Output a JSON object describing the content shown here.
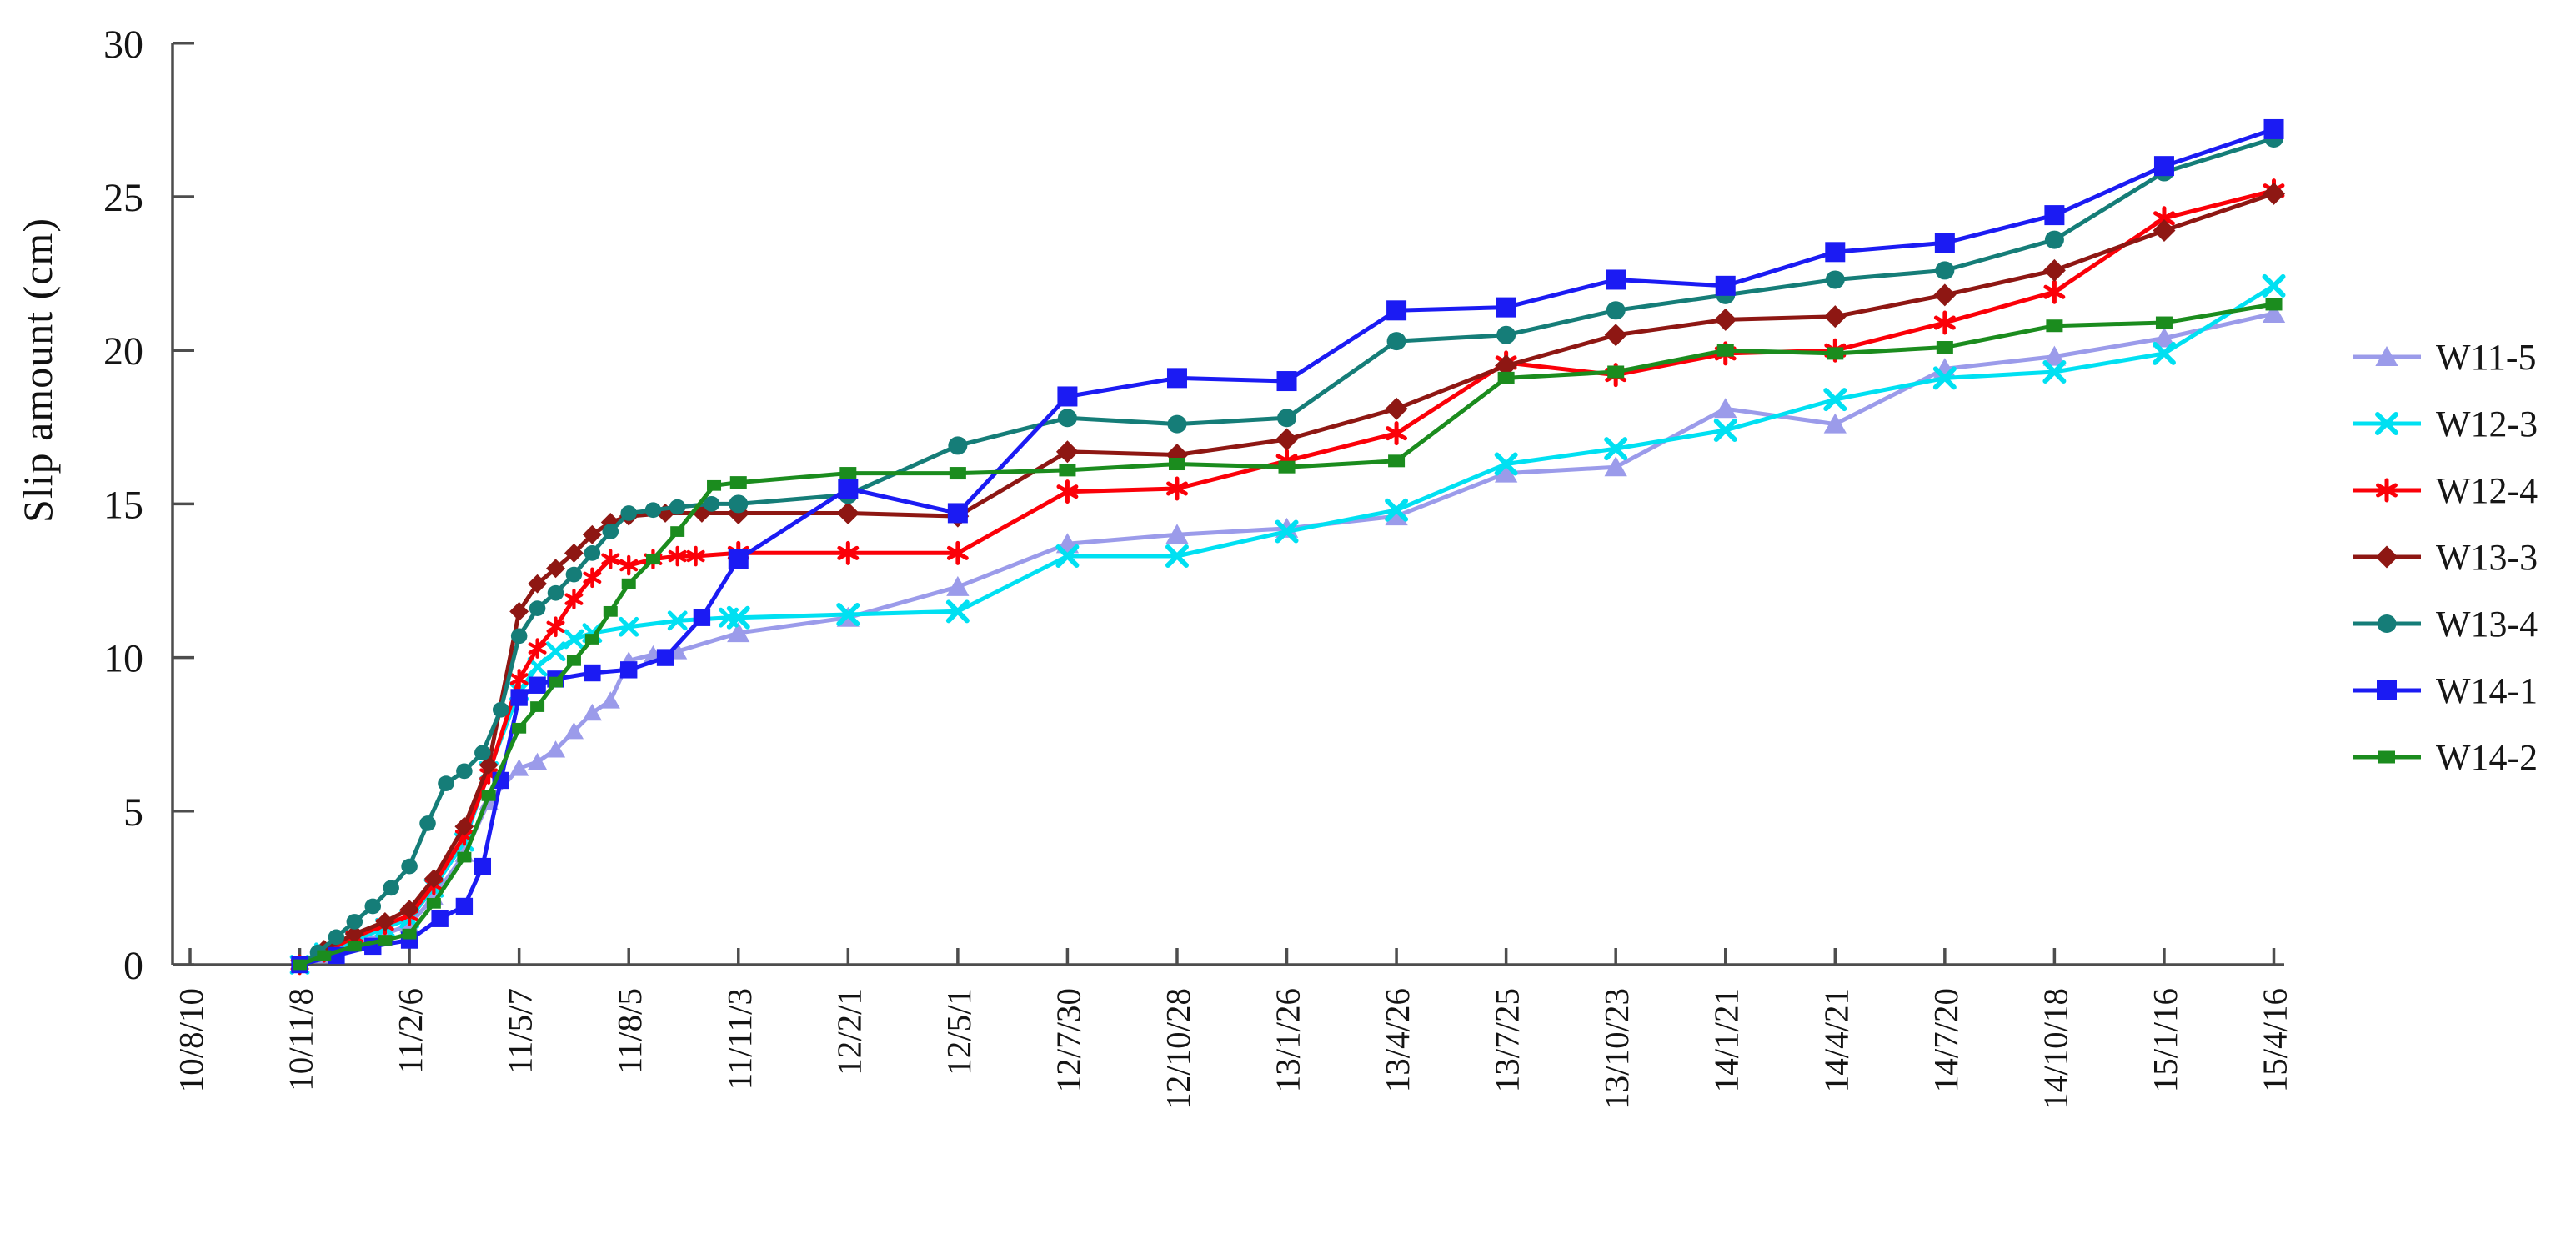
{
  "chart_data": {
    "type": "line",
    "title": "",
    "xlabel": "",
    "ylabel": "Slip amount (cm)",
    "ylim": [
      0,
      30
    ],
    "y_tick_labels": [
      "0",
      "5",
      "10",
      "15",
      "20",
      "25",
      "30"
    ],
    "y_tick_values": [
      0,
      5,
      10,
      15,
      20,
      25,
      30
    ],
    "x_tick_labels": [
      "10/8/10",
      "10/11/8",
      "11/2/6",
      "11/5/7",
      "11/8/5",
      "11/11/3",
      "12/2/1",
      "12/5/1",
      "12/7/30",
      "12/10/28",
      "13/1/26",
      "13/4/26",
      "13/7/25",
      "13/10/23",
      "14/1/21",
      "14/4/21",
      "14/7/20",
      "14/10/18",
      "15/1/16",
      "15/4/16"
    ],
    "x_tick_days": [
      0,
      90,
      180,
      270,
      360,
      450,
      540,
      630,
      720,
      810,
      900,
      990,
      1080,
      1170,
      1260,
      1350,
      1440,
      1530,
      1620,
      1710
    ],
    "grid": "off",
    "legend_position": "right",
    "axis_color": "#4d4d4d",
    "text_color": "#141414",
    "series": [
      {
        "name": "W11-5",
        "color": "#9b9bea",
        "marker": "triangle",
        "points": [
          [
            90,
            0
          ],
          [
            110,
            0.3
          ],
          [
            135,
            0.7
          ],
          [
            160,
            1.0
          ],
          [
            180,
            1.3
          ],
          [
            200,
            2.2
          ],
          [
            225,
            3.6
          ],
          [
            245,
            5.3
          ],
          [
            270,
            6.4
          ],
          [
            285,
            6.6
          ],
          [
            300,
            7.0
          ],
          [
            315,
            7.6
          ],
          [
            330,
            8.2
          ],
          [
            345,
            8.6
          ],
          [
            360,
            9.9
          ],
          [
            380,
            10.1
          ],
          [
            400,
            10.2
          ],
          [
            450,
            10.8
          ],
          [
            540,
            11.3
          ],
          [
            630,
            12.3
          ],
          [
            720,
            13.7
          ],
          [
            810,
            14.0
          ],
          [
            900,
            14.2
          ],
          [
            990,
            14.6
          ],
          [
            1080,
            16.0
          ],
          [
            1170,
            16.2
          ],
          [
            1260,
            18.1
          ],
          [
            1350,
            17.6
          ],
          [
            1440,
            19.4
          ],
          [
            1530,
            19.8
          ],
          [
            1620,
            20.4
          ],
          [
            1710,
            21.2
          ]
        ]
      },
      {
        "name": "W12-3",
        "color": "#00e0f2",
        "marker": "x",
        "points": [
          [
            90,
            0
          ],
          [
            110,
            0.4
          ],
          [
            135,
            0.8
          ],
          [
            160,
            1.2
          ],
          [
            180,
            1.5
          ],
          [
            200,
            2.5
          ],
          [
            225,
            4.0
          ],
          [
            245,
            6.3
          ],
          [
            270,
            8.9
          ],
          [
            285,
            9.7
          ],
          [
            300,
            10.2
          ],
          [
            315,
            10.6
          ],
          [
            330,
            10.8
          ],
          [
            360,
            11.0
          ],
          [
            400,
            11.2
          ],
          [
            442,
            11.3
          ],
          [
            450,
            11.3
          ],
          [
            540,
            11.4
          ],
          [
            630,
            11.5
          ],
          [
            720,
            13.3
          ],
          [
            810,
            13.3
          ],
          [
            900,
            14.1
          ],
          [
            990,
            14.8
          ],
          [
            1080,
            16.3
          ],
          [
            1170,
            16.8
          ],
          [
            1260,
            17.4
          ],
          [
            1350,
            18.4
          ],
          [
            1440,
            19.1
          ],
          [
            1530,
            19.3
          ],
          [
            1620,
            19.9
          ],
          [
            1710,
            22.1
          ]
        ]
      },
      {
        "name": "W12-4",
        "color": "#fb0008",
        "marker": "asterisk",
        "points": [
          [
            90,
            0
          ],
          [
            110,
            0.4
          ],
          [
            135,
            0.9
          ],
          [
            160,
            1.3
          ],
          [
            180,
            1.6
          ],
          [
            200,
            2.6
          ],
          [
            225,
            4.2
          ],
          [
            245,
            6.2
          ],
          [
            270,
            9.3
          ],
          [
            285,
            10.3
          ],
          [
            300,
            11.0
          ],
          [
            315,
            11.9
          ],
          [
            330,
            12.6
          ],
          [
            345,
            13.2
          ],
          [
            360,
            13.0
          ],
          [
            380,
            13.2
          ],
          [
            400,
            13.3
          ],
          [
            415,
            13.3
          ],
          [
            450,
            13.4
          ],
          [
            540,
            13.4
          ],
          [
            630,
            13.4
          ],
          [
            720,
            15.4
          ],
          [
            810,
            15.5
          ],
          [
            900,
            16.4
          ],
          [
            990,
            17.3
          ],
          [
            1080,
            19.6
          ],
          [
            1170,
            19.2
          ],
          [
            1260,
            19.9
          ],
          [
            1350,
            20.0
          ],
          [
            1440,
            20.9
          ],
          [
            1530,
            21.9
          ],
          [
            1620,
            24.3
          ],
          [
            1710,
            25.2
          ]
        ]
      },
      {
        "name": "W13-3",
        "color": "#8e1713",
        "marker": "diamond",
        "points": [
          [
            90,
            0
          ],
          [
            110,
            0.5
          ],
          [
            135,
            1.0
          ],
          [
            160,
            1.4
          ],
          [
            180,
            1.8
          ],
          [
            200,
            2.8
          ],
          [
            225,
            4.5
          ],
          [
            245,
            6.5
          ],
          [
            270,
            11.5
          ],
          [
            285,
            12.4
          ],
          [
            300,
            12.9
          ],
          [
            315,
            13.4
          ],
          [
            330,
            14.0
          ],
          [
            345,
            14.4
          ],
          [
            360,
            14.6
          ],
          [
            390,
            14.7
          ],
          [
            420,
            14.7
          ],
          [
            450,
            14.7
          ],
          [
            540,
            14.7
          ],
          [
            630,
            14.6
          ],
          [
            720,
            16.7
          ],
          [
            810,
            16.6
          ],
          [
            900,
            17.1
          ],
          [
            990,
            18.1
          ],
          [
            1080,
            19.5
          ],
          [
            1170,
            20.5
          ],
          [
            1260,
            21.0
          ],
          [
            1350,
            21.1
          ],
          [
            1440,
            21.8
          ],
          [
            1530,
            22.6
          ],
          [
            1620,
            23.9
          ],
          [
            1710,
            25.1
          ]
        ]
      },
      {
        "name": "W13-4",
        "color": "#157d78",
        "marker": "circle",
        "points": [
          [
            90,
            0
          ],
          [
            105,
            0.4
          ],
          [
            120,
            0.9
          ],
          [
            135,
            1.4
          ],
          [
            150,
            1.9
          ],
          [
            165,
            2.5
          ],
          [
            180,
            3.2
          ],
          [
            195,
            4.6
          ],
          [
            210,
            5.9
          ],
          [
            225,
            6.3
          ],
          [
            240,
            6.9
          ],
          [
            255,
            8.3
          ],
          [
            270,
            10.7
          ],
          [
            285,
            11.6
          ],
          [
            300,
            12.1
          ],
          [
            315,
            12.7
          ],
          [
            330,
            13.4
          ],
          [
            345,
            14.1
          ],
          [
            360,
            14.7
          ],
          [
            380,
            14.8
          ],
          [
            400,
            14.9
          ],
          [
            428,
            15.0
          ],
          [
            450,
            15.0
          ],
          [
            540,
            15.3
          ],
          [
            630,
            16.9
          ],
          [
            720,
            17.8
          ],
          [
            810,
            17.6
          ],
          [
            900,
            17.8
          ],
          [
            990,
            20.3
          ],
          [
            1080,
            20.5
          ],
          [
            1170,
            21.3
          ],
          [
            1260,
            21.8
          ],
          [
            1350,
            22.3
          ],
          [
            1440,
            22.6
          ],
          [
            1530,
            23.6
          ],
          [
            1620,
            25.8
          ],
          [
            1710,
            26.9
          ]
        ]
      },
      {
        "name": "W14-1",
        "color": "#1b1bf3",
        "marker": "square",
        "points": [
          [
            90,
            0
          ],
          [
            120,
            0.3
          ],
          [
            150,
            0.6
          ],
          [
            180,
            0.8
          ],
          [
            205,
            1.5
          ],
          [
            225,
            1.9
          ],
          [
            240,
            3.2
          ],
          [
            255,
            6.0
          ],
          [
            270,
            8.7
          ],
          [
            285,
            9.1
          ],
          [
            300,
            9.3
          ],
          [
            330,
            9.5
          ],
          [
            360,
            9.6
          ],
          [
            390,
            10.0
          ],
          [
            420,
            11.3
          ],
          [
            450,
            13.2
          ],
          [
            540,
            15.5
          ],
          [
            630,
            14.7
          ],
          [
            720,
            18.5
          ],
          [
            810,
            19.1
          ],
          [
            900,
            19.0
          ],
          [
            990,
            21.3
          ],
          [
            1080,
            21.4
          ],
          [
            1170,
            22.3
          ],
          [
            1260,
            22.1
          ],
          [
            1350,
            23.2
          ],
          [
            1440,
            23.5
          ],
          [
            1530,
            24.4
          ],
          [
            1620,
            26.0
          ],
          [
            1710,
            27.2
          ]
        ]
      },
      {
        "name": "W14-2",
        "color": "#1b8c1e",
        "marker": "square-small",
        "points": [
          [
            90,
            0
          ],
          [
            110,
            0.3
          ],
          [
            135,
            0.6
          ],
          [
            160,
            0.8
          ],
          [
            180,
            1.0
          ],
          [
            200,
            2.0
          ],
          [
            225,
            3.5
          ],
          [
            245,
            5.5
          ],
          [
            270,
            7.7
          ],
          [
            285,
            8.4
          ],
          [
            300,
            9.2
          ],
          [
            315,
            9.9
          ],
          [
            330,
            10.6
          ],
          [
            345,
            11.5
          ],
          [
            360,
            12.4
          ],
          [
            380,
            13.2
          ],
          [
            400,
            14.1
          ],
          [
            430,
            15.6
          ],
          [
            450,
            15.7
          ],
          [
            540,
            16.0
          ],
          [
            630,
            16.0
          ],
          [
            720,
            16.1
          ],
          [
            810,
            16.3
          ],
          [
            900,
            16.2
          ],
          [
            990,
            16.4
          ],
          [
            1080,
            19.1
          ],
          [
            1170,
            19.3
          ],
          [
            1260,
            20.0
          ],
          [
            1350,
            19.9
          ],
          [
            1440,
            20.1
          ],
          [
            1530,
            20.8
          ],
          [
            1620,
            20.9
          ],
          [
            1710,
            21.5
          ]
        ]
      }
    ]
  }
}
